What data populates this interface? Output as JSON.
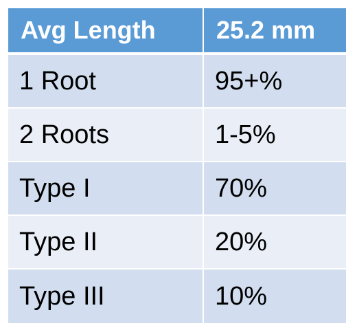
{
  "table": {
    "header": {
      "left": "Avg Length",
      "right": "25.2 mm"
    },
    "rows": [
      {
        "label": "1 Root",
        "value": "95+%"
      },
      {
        "label": "2 Roots",
        "value": "1-5%"
      },
      {
        "label": "Type I",
        "value": "70%"
      },
      {
        "label": "Type II",
        "value": "20%"
      },
      {
        "label": "Type III",
        "value": "10%"
      }
    ]
  },
  "colors": {
    "header_bg": "#5b9bd5",
    "row_dark": "#d2deef",
    "row_light": "#eaeff7"
  }
}
